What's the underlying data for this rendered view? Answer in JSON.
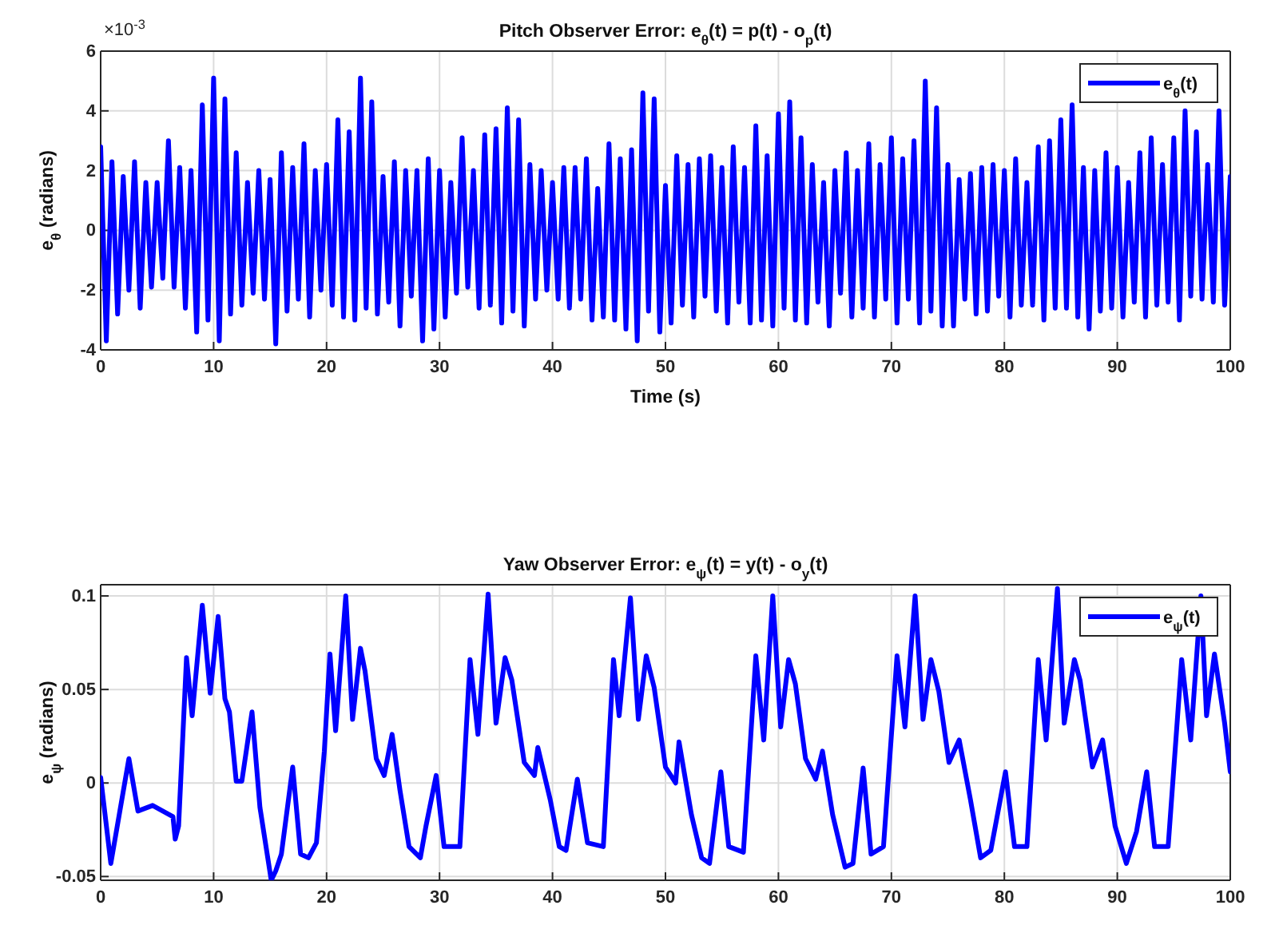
{
  "chart_data": [
    {
      "type": "line",
      "title": "Pitch Observer Error: e$_{θ}$(t) = p(t) - o$_{p}$(t)",
      "xlabel": "Time (s)",
      "ylabel": "e$_{θ}$ (radians)",
      "annotations": [
        "×10$^{-3}$"
      ],
      "xlim": [
        0,
        100
      ],
      "xticks": [
        0,
        10,
        20,
        30,
        40,
        50,
        60,
        70,
        80,
        90,
        100
      ],
      "ylim": [
        -4,
        6
      ],
      "yticks": [
        -4,
        -2,
        0,
        2,
        4,
        6
      ],
      "grid": true,
      "legend": "top right",
      "line_style": "solid",
      "marker": "none",
      "series": [
        {
          "name": "e$_{θ}$(t)",
          "color": "#0000ff",
          "x": [
            0,
            0.5,
            1,
            1.5,
            2,
            2.5,
            3,
            3.5,
            4,
            4.5,
            5,
            5.5,
            6,
            6.5,
            7,
            7.5,
            8,
            8.5,
            9,
            9.5,
            10,
            10.5,
            11,
            11.5,
            12,
            12.5,
            13,
            13.5,
            14,
            14.5,
            15,
            15.5,
            16,
            16.5,
            17,
            17.5,
            18,
            18.5,
            19,
            19.5,
            20,
            20.5,
            21,
            21.5,
            22,
            22.5,
            23,
            23.5,
            24,
            24.5,
            25,
            25.5,
            26,
            26.5,
            27,
            27.5,
            28,
            28.5,
            29,
            29.5,
            30,
            30.5,
            31,
            31.5,
            32,
            32.5,
            33,
            33.5,
            34,
            34.5,
            35,
            35.5,
            36,
            36.5,
            37,
            37.5,
            38,
            38.5,
            39,
            39.5,
            40,
            40.5,
            41,
            41.5,
            42,
            42.5,
            43,
            43.5,
            44,
            44.5,
            45,
            45.5,
            46,
            46.5,
            47,
            47.5,
            48,
            48.5,
            49,
            49.5,
            50,
            50.5,
            51,
            51.5,
            52,
            52.5,
            53,
            53.5,
            54,
            54.5,
            55,
            55.5,
            56,
            56.5,
            57,
            57.5,
            58,
            58.5,
            59,
            59.5,
            60,
            60.5,
            61,
            61.5,
            62,
            62.5,
            63,
            63.5,
            64,
            64.5,
            65,
            65.5,
            66,
            66.5,
            67,
            67.5,
            68,
            68.5,
            69,
            69.5,
            70,
            70.5,
            71,
            71.5,
            72,
            72.5,
            73,
            73.5,
            74,
            74.5,
            75,
            75.5,
            76,
            76.5,
            77,
            77.5,
            78,
            78.5,
            79,
            79.5,
            80,
            80.5,
            81,
            81.5,
            82,
            82.5,
            83,
            83.5,
            84,
            84.5,
            85,
            85.5,
            86,
            86.5,
            87,
            87.5,
            88,
            88.5,
            89,
            89.5,
            90,
            90.5,
            91,
            91.5,
            92,
            92.5,
            93,
            93.5,
            94,
            94.5,
            95,
            95.5,
            96,
            96.5,
            97,
            97.5,
            98,
            98.5,
            99,
            99.5,
            100
          ],
          "values": [
            2.8,
            -3.7,
            2.3,
            -2.8,
            1.8,
            -2.0,
            2.3,
            -2.6,
            1.6,
            -1.9,
            1.6,
            -1.6,
            3.0,
            -1.9,
            2.1,
            -2.6,
            2.0,
            -3.4,
            4.2,
            -3.0,
            5.1,
            -3.7,
            4.4,
            -2.8,
            2.6,
            -2.5,
            1.6,
            -2.1,
            2.0,
            -2.3,
            1.7,
            -3.8,
            2.6,
            -2.7,
            2.1,
            -2.3,
            2.9,
            -2.9,
            2.0,
            -2.0,
            2.2,
            -2.5,
            3.7,
            -2.9,
            3.3,
            -3.0,
            5.1,
            -2.6,
            4.3,
            -2.8,
            1.8,
            -2.4,
            2.3,
            -3.2,
            2.0,
            -2.2,
            2.0,
            -3.7,
            2.4,
            -3.3,
            2.0,
            -2.9,
            1.6,
            -2.1,
            3.1,
            -1.9,
            2.0,
            -2.6,
            3.2,
            -2.5,
            3.4,
            -3.1,
            4.1,
            -2.7,
            3.7,
            -3.2,
            2.2,
            -2.3,
            2.0,
            -2.0,
            1.6,
            -2.3,
            2.1,
            -2.6,
            2.1,
            -2.3,
            2.4,
            -3.0,
            1.4,
            -2.9,
            2.9,
            -3.0,
            2.4,
            -3.3,
            2.7,
            -3.7,
            4.6,
            -2.7,
            4.4,
            -3.4,
            1.5,
            -3.1,
            2.5,
            -2.5,
            2.2,
            -2.9,
            2.4,
            -2.2,
            2.5,
            -2.7,
            2.1,
            -3.1,
            2.8,
            -2.4,
            2.1,
            -3.1,
            3.5,
            -3.0,
            2.5,
            -3.2,
            3.9,
            -2.6,
            4.3,
            -3.0,
            3.1,
            -3.1,
            2.2,
            -2.4,
            1.6,
            -3.2,
            2.0,
            -2.1,
            2.6,
            -2.9,
            2.0,
            -2.6,
            2.9,
            -2.9,
            2.2,
            -2.3,
            3.1,
            -3.1,
            2.4,
            -2.3,
            3.0,
            -3.1,
            5.0,
            -2.7,
            4.1,
            -3.2,
            2.2,
            -3.2,
            1.7,
            -2.3,
            1.9,
            -2.8,
            2.1,
            -2.7,
            2.2,
            -2.2,
            2.0,
            -2.9,
            2.4,
            -2.5,
            1.6,
            -2.5,
            2.8,
            -3.0,
            3.0,
            -2.6,
            3.7,
            -2.6,
            4.2,
            -2.9,
            2.1,
            -3.3,
            2.0,
            -2.7,
            2.6,
            -2.6,
            2.1,
            -2.9,
            1.6,
            -2.4,
            2.6,
            -2.9,
            3.1,
            -2.5,
            2.2,
            -2.4,
            3.1,
            -3.0,
            4.0,
            -2.2,
            3.3,
            -2.3,
            2.2,
            -2.4,
            4.0,
            -2.5,
            1.8
          ]
        }
      ]
    },
    {
      "type": "line",
      "title": "Yaw Observer Error: e$_{ψ}$(t) = y(t) - o$_{y}$(t)",
      "ylabel": "e$_{ψ}$ (radians)",
      "xlim": [
        0,
        100
      ],
      "xticks": [
        0,
        10,
        20,
        30,
        40,
        50,
        60,
        70,
        80,
        90,
        100
      ],
      "ylim": [
        -0.052,
        0.106
      ],
      "yticks": [
        -0.05,
        0,
        0.05,
        0.1
      ],
      "grid": true,
      "legend": "top right",
      "line_style": "solid",
      "marker": "none",
      "series": [
        {
          "name": "e$_{ψ}$(t)",
          "color": "#0000ff",
          "x": [
            0,
            0.9,
            2.5,
            3.3,
            4.6,
            6.4,
            6.6,
            6.9,
            7.6,
            8.1,
            9.0,
            9.7,
            10.4,
            11.0,
            11.4,
            12.0,
            12.5,
            13.4,
            14.1,
            15.1,
            15.5,
            16.0,
            17.0,
            17.7,
            18.4,
            19.1,
            19.8,
            20.3,
            20.8,
            21.7,
            22.3,
            23.0,
            23.4,
            24.4,
            25.1,
            25.8,
            26.5,
            27.3,
            28.3,
            28.8,
            29.7,
            30.4,
            31.8,
            32.7,
            33.4,
            34.3,
            35.0,
            35.8,
            36.4,
            37.5,
            38.4,
            38.7,
            39.8,
            40.6,
            41.2,
            42.2,
            43.1,
            44.5,
            45.4,
            45.9,
            46.9,
            47.6,
            48.3,
            49.0,
            50.0,
            50.9,
            51.2,
            52.3,
            53.2,
            53.9,
            54.9,
            55.6,
            56.9,
            58.0,
            58.7,
            59.5,
            60.2,
            60.9,
            61.5,
            62.4,
            63.3,
            63.9,
            64.8,
            65.9,
            66.6,
            67.5,
            68.2,
            69.3,
            70.5,
            71.2,
            72.1,
            72.8,
            73.5,
            74.2,
            75.1,
            76.0,
            77.0,
            77.9,
            78.8,
            80.1,
            80.9,
            82.0,
            83.0,
            83.7,
            84.7,
            85.3,
            86.2,
            86.7,
            87.8,
            88.7,
            89.8,
            90.8,
            91.7,
            92.6,
            93.3,
            94.5,
            95.7,
            96.5,
            97.4,
            97.9,
            98.6,
            99.5,
            100
          ],
          "values": [
            0.003,
            -0.043,
            0.013,
            -0.015,
            -0.012,
            -0.018,
            -0.03,
            -0.023,
            0.067,
            0.036,
            0.095,
            0.048,
            0.089,
            0.045,
            0.038,
            0.001,
            0.001,
            0.038,
            -0.013,
            -0.052,
            -0.047,
            -0.038,
            0.0085,
            -0.038,
            -0.04,
            -0.032,
            0.017,
            0.069,
            0.028,
            0.1,
            0.034,
            0.072,
            0.06,
            0.013,
            0.004,
            0.026,
            -0.004,
            -0.034,
            -0.04,
            -0.023,
            0.004,
            -0.034,
            -0.034,
            0.066,
            0.026,
            0.101,
            0.032,
            0.067,
            0.055,
            0.011,
            0.004,
            0.019,
            -0.009,
            -0.034,
            -0.036,
            0.002,
            -0.032,
            -0.034,
            0.066,
            0.036,
            0.099,
            0.034,
            0.068,
            0.051,
            0.0085,
            0,
            0.022,
            -0.017,
            -0.04,
            -0.043,
            0.006,
            -0.034,
            -0.037,
            0.068,
            0.023,
            0.1,
            0.03,
            0.066,
            0.053,
            0.013,
            0.002,
            0.017,
            -0.017,
            -0.045,
            -0.043,
            0.008,
            -0.038,
            -0.034,
            0.068,
            0.03,
            0.1,
            0.034,
            0.066,
            0.049,
            0.011,
            0.023,
            -0.009,
            -0.04,
            -0.036,
            0.006,
            -0.034,
            -0.034,
            0.066,
            0.023,
            0.104,
            0.032,
            0.066,
            0.055,
            0.0085,
            0.023,
            -0.023,
            -0.043,
            -0.026,
            0.006,
            -0.034,
            -0.034,
            0.066,
            0.023,
            0.1,
            0.036,
            0.069,
            0.032,
            0.006
          ]
        }
      ]
    }
  ]
}
